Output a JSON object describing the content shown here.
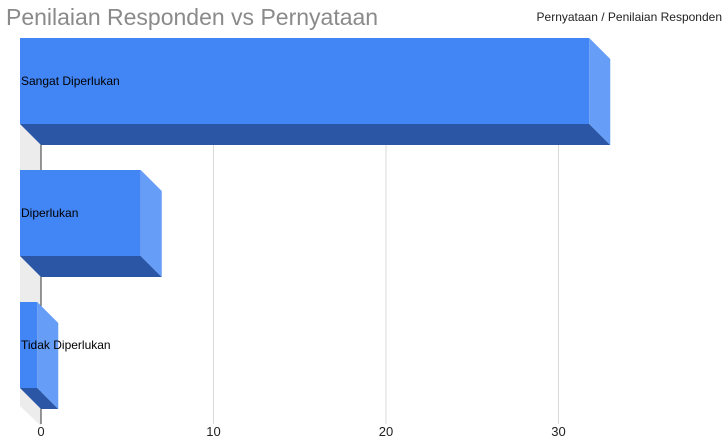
{
  "chart_data": {
    "type": "bar",
    "orientation": "horizontal",
    "style": "3d",
    "title": "Penilaian Responden vs Pernyataan",
    "legend": "Pernyataan / Penilaian Responden",
    "legend_position": "top-right",
    "categories": [
      "Sangat Diperlukan",
      "Diperlukan",
      "Tidak Diperlukan"
    ],
    "series": [
      {
        "name": "Pernyataan / Penilaian Responden",
        "values": [
          33,
          7,
          1
        ]
      }
    ],
    "x_ticks": [
      "0",
      "10",
      "20",
      "30"
    ],
    "xlim": [
      0,
      38
    ],
    "grid": true,
    "colors": {
      "bar_front": "#4285f4",
      "bar_side": "#669df6",
      "bar_bottom": "#2a56a5",
      "grid": "#d9d9d9"
    }
  }
}
